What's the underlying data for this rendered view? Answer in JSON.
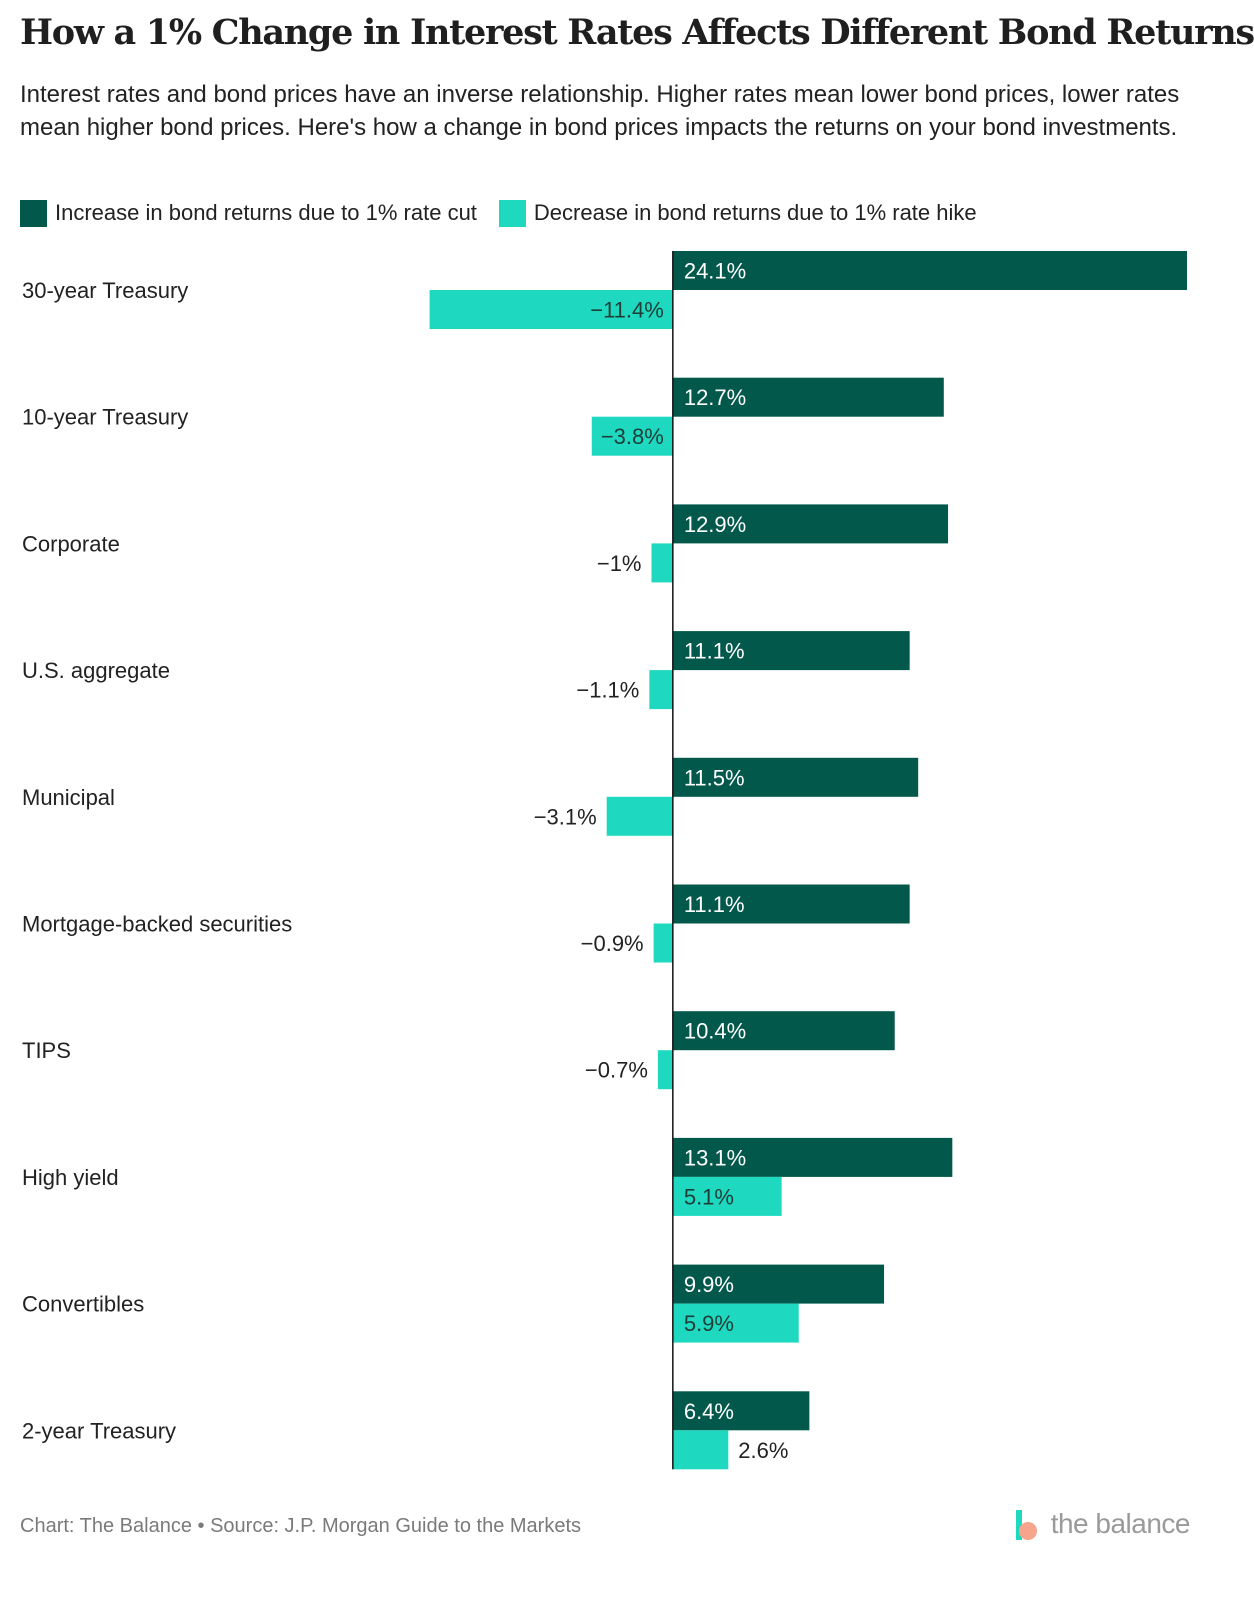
{
  "chart_data": {
    "type": "bar",
    "orientation": "horizontal",
    "title": "How a 1% Change in Interest Rates Affects Different Bond Returns",
    "subtitle": "Interest rates and bond prices have an inverse relationship. Higher rates mean lower bond prices, lower rates mean higher bond prices. Here's how a change in bond prices impacts the returns on your bond investments.",
    "categories": [
      "30-year Treasury",
      "10-year Treasury",
      "Corporate",
      "U.S. aggregate",
      "Municipal",
      "Mortgage-backed securities",
      "TIPS",
      "High yield",
      "Convertibles",
      "2-year Treasury"
    ],
    "series": [
      {
        "name": "Increase in bond returns due to 1% rate cut",
        "color": "#02584a",
        "values": [
          24.1,
          12.7,
          12.9,
          11.1,
          11.5,
          11.1,
          10.4,
          13.1,
          9.9,
          6.4
        ],
        "labels": [
          "24.1%",
          "12.7%",
          "12.9%",
          "11.1%",
          "11.5%",
          "11.1%",
          "10.4%",
          "13.1%",
          "9.9%",
          "6.4%"
        ]
      },
      {
        "name": "Decrease in bond returns due to 1% rate hike",
        "color": "#1ed8bf",
        "values": [
          -11.4,
          -3.8,
          -1,
          -1.1,
          -3.1,
          -0.9,
          -0.7,
          5.1,
          5.9,
          2.6
        ],
        "labels": [
          "−11.4%",
          "−3.8%",
          "−1%",
          "−1.1%",
          "−3.1%",
          "−0.9%",
          "−0.7%",
          "5.1%",
          "5.9%",
          "2.6%"
        ]
      }
    ],
    "xlim": [
      -30.6,
      24.1
    ],
    "grid": false,
    "legend_position": "top-left",
    "xlabel": "",
    "ylabel": ""
  },
  "footer": {
    "source": "Chart: The Balance • Source: J.P. Morgan Guide to the Markets",
    "brand": "the balance"
  }
}
